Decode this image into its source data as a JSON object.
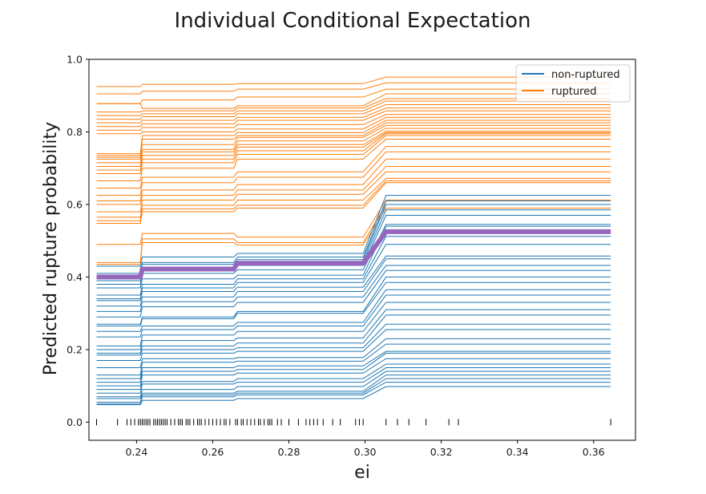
{
  "chart_data": {
    "type": "line",
    "title": "Individual Conditional Expectation",
    "xlabel": "ei",
    "ylabel": "Predicted rupture probability",
    "xlim": [
      0.2275,
      0.371
    ],
    "ylim": [
      -0.05,
      1.0
    ],
    "xticks": [
      0.24,
      0.26,
      0.28,
      0.3,
      0.32,
      0.34,
      0.36
    ],
    "xtick_labels": [
      "0.24",
      "0.26",
      "0.28",
      "0.30",
      "0.32",
      "0.34",
      "0.36"
    ],
    "yticks": [
      0.0,
      0.2,
      0.4,
      0.6,
      0.8,
      1.0
    ],
    "ytick_labels": [
      "0.0",
      "0.2",
      "0.4",
      "0.6",
      "0.8",
      "1.0"
    ],
    "legend": {
      "placement": "top-right",
      "entries": [
        {
          "label": "non-ruptured",
          "color": "#1f77b4"
        },
        {
          "label": "ruptured",
          "color": "#ff7f0e"
        }
      ]
    },
    "x_grid": [
      0.2295,
      0.241,
      0.2415,
      0.2655,
      0.2665,
      0.2995,
      0.3055,
      0.3645
    ],
    "series": [
      {
        "group": "ruptured",
        "values": [
          0.925,
          0.925,
          0.931,
          0.931,
          0.933,
          0.933,
          0.951,
          0.951
        ]
      },
      {
        "group": "ruptured",
        "values": [
          0.905,
          0.905,
          0.912,
          0.912,
          0.918,
          0.918,
          0.935,
          0.935
        ]
      },
      {
        "group": "ruptured",
        "values": [
          0.878,
          0.878,
          0.888,
          0.888,
          0.896,
          0.896,
          0.918,
          0.918
        ]
      },
      {
        "group": "ruptured",
        "values": [
          0.878,
          0.878,
          0.865,
          0.865,
          0.872,
          0.872,
          0.905,
          0.905
        ]
      },
      {
        "group": "ruptured",
        "values": [
          0.855,
          0.855,
          0.858,
          0.858,
          0.866,
          0.866,
          0.892,
          0.892
        ]
      },
      {
        "group": "ruptured",
        "values": [
          0.845,
          0.845,
          0.85,
          0.85,
          0.858,
          0.858,
          0.885,
          0.885
        ]
      },
      {
        "group": "ruptured",
        "values": [
          0.835,
          0.835,
          0.842,
          0.842,
          0.85,
          0.85,
          0.875,
          0.875
        ]
      },
      {
        "group": "ruptured",
        "values": [
          0.825,
          0.825,
          0.832,
          0.832,
          0.84,
          0.84,
          0.866,
          0.866
        ]
      },
      {
        "group": "ruptured",
        "values": [
          0.815,
          0.815,
          0.822,
          0.822,
          0.832,
          0.832,
          0.858,
          0.858
        ]
      },
      {
        "group": "ruptured",
        "values": [
          0.805,
          0.805,
          0.812,
          0.812,
          0.82,
          0.82,
          0.848,
          0.848
        ]
      },
      {
        "group": "ruptured",
        "values": [
          0.795,
          0.795,
          0.8,
          0.8,
          0.808,
          0.808,
          0.84,
          0.84
        ]
      },
      {
        "group": "ruptured",
        "values": [
          0.74,
          0.74,
          0.79,
          0.79,
          0.798,
          0.798,
          0.832,
          0.832
        ]
      },
      {
        "group": "ruptured",
        "values": [
          0.73,
          0.73,
          0.78,
          0.78,
          0.79,
          0.79,
          0.825,
          0.825
        ]
      },
      {
        "group": "ruptured",
        "values": [
          0.735,
          0.735,
          0.765,
          0.765,
          0.785,
          0.785,
          0.818,
          0.818
        ]
      },
      {
        "group": "ruptured",
        "values": [
          0.725,
          0.725,
          0.752,
          0.752,
          0.775,
          0.775,
          0.81,
          0.81
        ]
      },
      {
        "group": "ruptured",
        "values": [
          0.715,
          0.715,
          0.745,
          0.745,
          0.765,
          0.765,
          0.802,
          0.802
        ]
      },
      {
        "group": "ruptured",
        "values": [
          0.705,
          0.705,
          0.735,
          0.735,
          0.758,
          0.758,
          0.798,
          0.798
        ]
      },
      {
        "group": "ruptured",
        "values": [
          0.695,
          0.695,
          0.725,
          0.725,
          0.748,
          0.748,
          0.795,
          0.795
        ]
      },
      {
        "group": "ruptured",
        "values": [
          0.685,
          0.685,
          0.715,
          0.715,
          0.738,
          0.738,
          0.79,
          0.79
        ]
      },
      {
        "group": "ruptured",
        "values": [
          0.665,
          0.665,
          0.7,
          0.7,
          0.725,
          0.725,
          0.78,
          0.78
        ]
      },
      {
        "group": "ruptured",
        "values": [
          0.645,
          0.645,
          0.675,
          0.675,
          0.69,
          0.69,
          0.76,
          0.76
        ]
      },
      {
        "group": "ruptured",
        "values": [
          0.625,
          0.625,
          0.66,
          0.66,
          0.675,
          0.675,
          0.745,
          0.745
        ]
      },
      {
        "group": "ruptured",
        "values": [
          0.61,
          0.61,
          0.64,
          0.64,
          0.655,
          0.655,
          0.725,
          0.725
        ]
      },
      {
        "group": "ruptured",
        "values": [
          0.6,
          0.6,
          0.625,
          0.625,
          0.64,
          0.64,
          0.705,
          0.705
        ]
      },
      {
        "group": "ruptured",
        "values": [
          0.58,
          0.58,
          0.612,
          0.612,
          0.628,
          0.628,
          0.69,
          0.69
        ]
      },
      {
        "group": "ruptured",
        "values": [
          0.565,
          0.565,
          0.598,
          0.598,
          0.612,
          0.612,
          0.672,
          0.672
        ]
      },
      {
        "group": "ruptured",
        "values": [
          0.555,
          0.555,
          0.588,
          0.588,
          0.598,
          0.598,
          0.665,
          0.665
        ]
      },
      {
        "group": "ruptured",
        "values": [
          0.548,
          0.548,
          0.58,
          0.58,
          0.59,
          0.59,
          0.66,
          0.66
        ]
      },
      {
        "group": "ruptured",
        "values": [
          0.49,
          0.49,
          0.52,
          0.52,
          0.51,
          0.51,
          0.612,
          0.612
        ]
      },
      {
        "group": "ruptured",
        "values": [
          0.44,
          0.44,
          0.505,
          0.505,
          0.495,
          0.495,
          0.6,
          0.6
        ]
      },
      {
        "group": "ruptured",
        "values": [
          0.435,
          0.435,
          0.495,
          0.495,
          0.488,
          0.488,
          0.59,
          0.59
        ]
      },
      {
        "group": "non-ruptured",
        "values": [
          0.43,
          0.43,
          0.455,
          0.455,
          0.465,
          0.465,
          0.625,
          0.625
        ]
      },
      {
        "group": "non-ruptured",
        "values": [
          0.41,
          0.41,
          0.44,
          0.44,
          0.455,
          0.455,
          0.61,
          0.61
        ]
      },
      {
        "group": "non-ruptured",
        "values": [
          0.405,
          0.405,
          0.435,
          0.435,
          0.448,
          0.448,
          0.6,
          0.6
        ]
      },
      {
        "group": "non-ruptured",
        "values": [
          0.4,
          0.4,
          0.425,
          0.425,
          0.44,
          0.44,
          0.585,
          0.585
        ]
      },
      {
        "group": "non-ruptured",
        "values": [
          0.39,
          0.39,
          0.42,
          0.42,
          0.432,
          0.432,
          0.57,
          0.57
        ]
      },
      {
        "group": "non-ruptured",
        "values": [
          0.38,
          0.38,
          0.41,
          0.41,
          0.42,
          0.42,
          0.545,
          0.545
        ]
      },
      {
        "group": "non-ruptured",
        "values": [
          0.37,
          0.37,
          0.395,
          0.395,
          0.405,
          0.405,
          0.54,
          0.54
        ]
      },
      {
        "group": "non-ruptured",
        "values": [
          0.35,
          0.35,
          0.38,
          0.38,
          0.395,
          0.395,
          0.512,
          0.512
        ]
      },
      {
        "group": "non-ruptured",
        "values": [
          0.34,
          0.34,
          0.37,
          0.37,
          0.385,
          0.385,
          0.49,
          0.49
        ]
      },
      {
        "group": "non-ruptured",
        "values": [
          0.335,
          0.335,
          0.36,
          0.36,
          0.372,
          0.372,
          0.458,
          0.458
        ]
      },
      {
        "group": "non-ruptured",
        "values": [
          0.32,
          0.32,
          0.345,
          0.345,
          0.36,
          0.36,
          0.45,
          0.45
        ]
      },
      {
        "group": "non-ruptured",
        "values": [
          0.305,
          0.305,
          0.332,
          0.332,
          0.345,
          0.345,
          0.432,
          0.432
        ]
      },
      {
        "group": "non-ruptured",
        "values": [
          0.29,
          0.29,
          0.318,
          0.318,
          0.33,
          0.33,
          0.418,
          0.418
        ]
      },
      {
        "group": "non-ruptured",
        "values": [
          0.27,
          0.27,
          0.29,
          0.29,
          0.305,
          0.305,
          0.4,
          0.4
        ]
      },
      {
        "group": "non-ruptured",
        "values": [
          0.265,
          0.265,
          0.285,
          0.285,
          0.3,
          0.3,
          0.385,
          0.385
        ]
      },
      {
        "group": "non-ruptured",
        "values": [
          0.25,
          0.25,
          0.265,
          0.265,
          0.275,
          0.275,
          0.365,
          0.365
        ]
      },
      {
        "group": "non-ruptured",
        "values": [
          0.235,
          0.235,
          0.255,
          0.255,
          0.265,
          0.265,
          0.35,
          0.35
        ]
      },
      {
        "group": "non-ruptured",
        "values": [
          0.21,
          0.21,
          0.24,
          0.24,
          0.25,
          0.25,
          0.33,
          0.33
        ]
      },
      {
        "group": "non-ruptured",
        "values": [
          0.2,
          0.2,
          0.225,
          0.225,
          0.232,
          0.232,
          0.31,
          0.31
        ]
      },
      {
        "group": "non-ruptured",
        "values": [
          0.19,
          0.19,
          0.21,
          0.21,
          0.218,
          0.218,
          0.295,
          0.295
        ]
      },
      {
        "group": "non-ruptured",
        "values": [
          0.185,
          0.185,
          0.2,
          0.2,
          0.205,
          0.205,
          0.27,
          0.27
        ]
      },
      {
        "group": "non-ruptured",
        "values": [
          0.17,
          0.17,
          0.19,
          0.19,
          0.195,
          0.195,
          0.255,
          0.255
        ]
      },
      {
        "group": "non-ruptured",
        "values": [
          0.15,
          0.15,
          0.175,
          0.175,
          0.178,
          0.178,
          0.23,
          0.23
        ]
      },
      {
        "group": "non-ruptured",
        "values": [
          0.13,
          0.13,
          0.165,
          0.165,
          0.168,
          0.168,
          0.215,
          0.215
        ]
      },
      {
        "group": "non-ruptured",
        "values": [
          0.12,
          0.12,
          0.15,
          0.15,
          0.155,
          0.155,
          0.195,
          0.195
        ]
      },
      {
        "group": "non-ruptured",
        "values": [
          0.11,
          0.11,
          0.14,
          0.14,
          0.145,
          0.145,
          0.19,
          0.19
        ]
      },
      {
        "group": "non-ruptured",
        "values": [
          0.1,
          0.1,
          0.13,
          0.13,
          0.135,
          0.135,
          0.175,
          0.175
        ]
      },
      {
        "group": "non-ruptured",
        "values": [
          0.09,
          0.09,
          0.112,
          0.112,
          0.12,
          0.12,
          0.16,
          0.16
        ]
      },
      {
        "group": "non-ruptured",
        "values": [
          0.08,
          0.08,
          0.105,
          0.105,
          0.11,
          0.11,
          0.15,
          0.15
        ]
      },
      {
        "group": "non-ruptured",
        "values": [
          0.07,
          0.07,
          0.09,
          0.09,
          0.098,
          0.098,
          0.14,
          0.14
        ]
      },
      {
        "group": "non-ruptured",
        "values": [
          0.065,
          0.065,
          0.08,
          0.08,
          0.085,
          0.085,
          0.13,
          0.13
        ]
      },
      {
        "group": "non-ruptured",
        "values": [
          0.055,
          0.055,
          0.075,
          0.075,
          0.08,
          0.08,
          0.12,
          0.12
        ]
      },
      {
        "group": "non-ruptured",
        "values": [
          0.05,
          0.05,
          0.07,
          0.07,
          0.075,
          0.075,
          0.11,
          0.11
        ]
      },
      {
        "group": "non-ruptured",
        "values": [
          0.048,
          0.048,
          0.06,
          0.06,
          0.065,
          0.065,
          0.098,
          0.098
        ]
      }
    ],
    "average": {
      "color": "#9467bd",
      "values": [
        0.4,
        0.4,
        0.422,
        0.422,
        0.438,
        0.438,
        0.525,
        0.525
      ]
    },
    "rug": [
      0.2295,
      0.235,
      0.2375,
      0.2385,
      0.2395,
      0.2405,
      0.241,
      0.2415,
      0.242,
      0.2425,
      0.243,
      0.2435,
      0.2445,
      0.245,
      0.2455,
      0.246,
      0.2465,
      0.247,
      0.2475,
      0.248,
      0.249,
      0.25,
      0.251,
      0.2515,
      0.252,
      0.253,
      0.2535,
      0.254,
      0.255,
      0.256,
      0.2565,
      0.257,
      0.258,
      0.259,
      0.26,
      0.261,
      0.262,
      0.263,
      0.2635,
      0.2645,
      0.266,
      0.2665,
      0.2675,
      0.268,
      0.269,
      0.27,
      0.271,
      0.272,
      0.2725,
      0.2735,
      0.2745,
      0.275,
      0.2755,
      0.277,
      0.278,
      0.28,
      0.2825,
      0.2845,
      0.2855,
      0.2865,
      0.2875,
      0.289,
      0.2915,
      0.2935,
      0.2975,
      0.2985,
      0.2995,
      0.3055,
      0.3085,
      0.3115,
      0.316,
      0.322,
      0.3245,
      0.3645
    ],
    "style": {
      "ruptured_color": "#ff7f0e",
      "non_ruptured_color": "#1f77b4",
      "grid": false
    }
  }
}
